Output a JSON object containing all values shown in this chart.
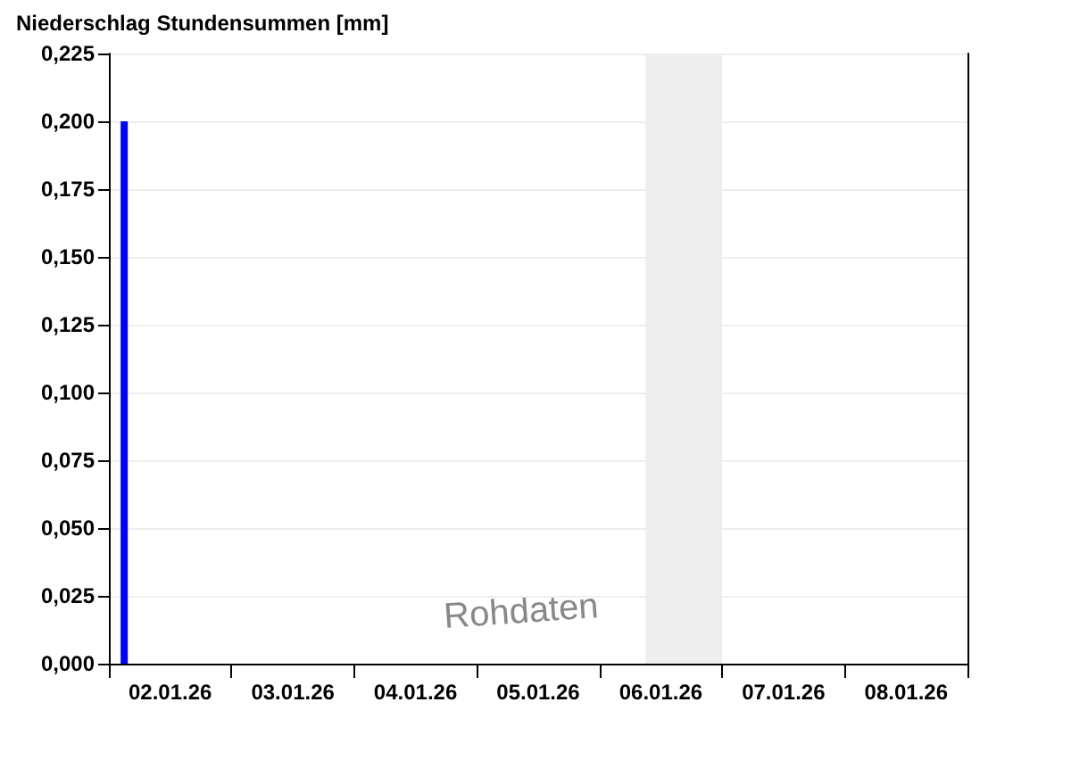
{
  "chart_data": {
    "type": "bar",
    "title": "Niederschlag Stundensummen [mm]",
    "x": [
      "--01-02T03:00"
    ],
    "values": [
      0.2
    ],
    "color": "#0000ff",
    "xlim": [
      "--01-02T00:00",
      "--01-09T00:00"
    ],
    "xticks": [
      {
        "value": "--01-02T00:00",
        "label": null
      },
      {
        "value": "--01-02T12:00",
        "label": "02.01.26"
      },
      {
        "value": "--01-03T00:00",
        "label": null
      },
      {
        "value": "--01-03T12:00",
        "label": "03.01.26"
      },
      {
        "value": "--01-04T00:00",
        "label": null
      },
      {
        "value": "--01-04T12:00",
        "label": "04.01.26"
      },
      {
        "value": "--01-05T00:00",
        "label": null
      },
      {
        "value": "--01-05T12:00",
        "label": "05.01.26"
      },
      {
        "value": "--01-06T00:00",
        "label": null
      },
      {
        "value": "--01-06T12:00",
        "label": "06.01.26"
      },
      {
        "value": "--01-07T00:00",
        "label": null
      },
      {
        "value": "--01-07T12:00",
        "label": "07.01.26"
      },
      {
        "value": "--01-08T00:00",
        "label": null
      },
      {
        "value": "--01-08T12:00",
        "label": "08.01.26"
      },
      {
        "value": "--01-09T00:00",
        "label": null
      }
    ],
    "ylim": [
      0,
      0.225
    ],
    "yticks": [
      {
        "value": 0,
        "label": "0,000"
      },
      {
        "value": 0.025,
        "label": "0,025"
      },
      {
        "value": 0.05,
        "label": "0,050"
      },
      {
        "value": 0.075,
        "label": "0,075"
      },
      {
        "value": 0.1,
        "label": "0,100"
      },
      {
        "value": 0.125,
        "label": "0,125"
      },
      {
        "value": 0.15,
        "label": "0,150"
      },
      {
        "value": 0.175,
        "label": "0,175"
      },
      {
        "value": 0.2,
        "label": "0,200"
      },
      {
        "value": 0.225,
        "label": "0,225"
      }
    ],
    "bands": [
      {
        "axis": "x",
        "from": "--01-06T09:00",
        "to": "--01-07T00:00",
        "color": "#eeeeee"
      }
    ],
    "annotations": [
      "Rohdaten"
    ],
    "grid": "y"
  }
}
